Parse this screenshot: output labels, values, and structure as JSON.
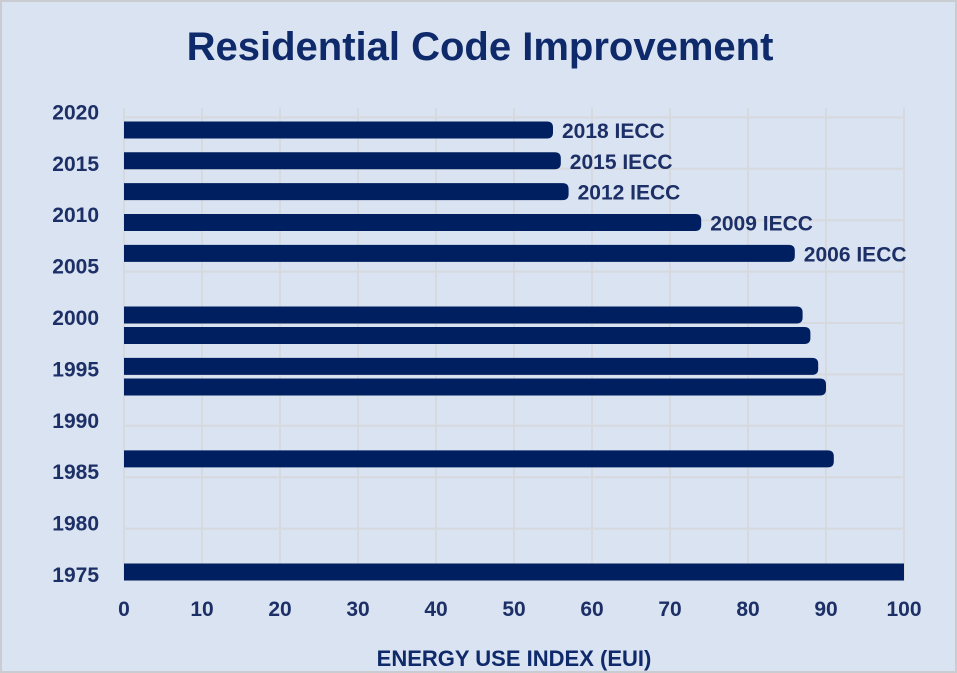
{
  "chart_data": {
    "type": "bar",
    "orientation": "horizontal",
    "title": "Residential Code Improvement",
    "xlabel": "ENERGY USE INDEX (EUI)",
    "ylabel": "",
    "xlim": [
      0,
      100
    ],
    "ylim": [
      1975,
      2020
    ],
    "xticks": [
      "0",
      "10",
      "20",
      "30",
      "40",
      "50",
      "60",
      "70",
      "80",
      "90",
      "100"
    ],
    "yticks": [
      "1975",
      "1980",
      "1985",
      "1990",
      "1995",
      "2000",
      "2005",
      "2010",
      "2015",
      "2020"
    ],
    "grid": true,
    "bars": [
      {
        "year": 2018,
        "value": 55,
        "label": "2018 IECC"
      },
      {
        "year": 2015,
        "value": 56,
        "label": "2015 IECC"
      },
      {
        "year": 2012,
        "value": 57,
        "label": "2012 IECC"
      },
      {
        "year": 2009,
        "value": 74,
        "label": "2009 IECC"
      },
      {
        "year": 2006,
        "value": 86,
        "label": "2006 IECC"
      },
      {
        "year": 2000,
        "value": 87,
        "label": ""
      },
      {
        "year": 1998,
        "value": 88,
        "label": ""
      },
      {
        "year": 1995,
        "value": 89,
        "label": ""
      },
      {
        "year": 1993,
        "value": 90,
        "label": ""
      },
      {
        "year": 1986,
        "value": 91,
        "label": ""
      },
      {
        "year": 1975,
        "value": 100,
        "label": ""
      }
    ],
    "colors": {
      "bar": "#001f60",
      "text": "#1c2f66",
      "background": "#dae3f1",
      "grid": "#d6d9de"
    }
  }
}
